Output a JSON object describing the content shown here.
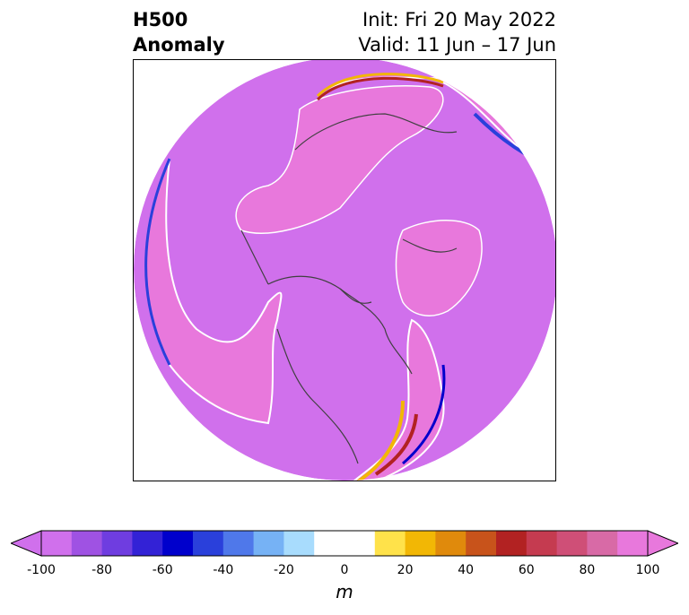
{
  "title": {
    "left_line1": "H500",
    "left_line2": "Anomaly",
    "right_line1": "Init: Fri 20 May 2022",
    "right_line2": "Valid: 11 Jun – 17 Jun"
  },
  "map": {
    "projection": "north-polar-stereographic",
    "background_anomaly_color": "#d070ec",
    "positive_anomaly_color": "#e878dc"
  },
  "colorbar": {
    "unit_label": "m",
    "ticks": [
      "-100",
      "-80",
      "-60",
      "-40",
      "-20",
      "0",
      "20",
      "40",
      "60",
      "80",
      "100"
    ],
    "colors": [
      "#d070ec",
      "#9f52e3",
      "#6f3de0",
      "#3322d6",
      "#0000cc",
      "#2a40db",
      "#4f78ea",
      "#76b2f5",
      "#a8dcfd",
      "#ffffff",
      "#ffffff",
      "#ffe24a",
      "#f2b705",
      "#e08a0c",
      "#c8531b",
      "#b22222",
      "#c53b50",
      "#cf4f77",
      "#d86aa6",
      "#e878dc"
    ]
  }
}
